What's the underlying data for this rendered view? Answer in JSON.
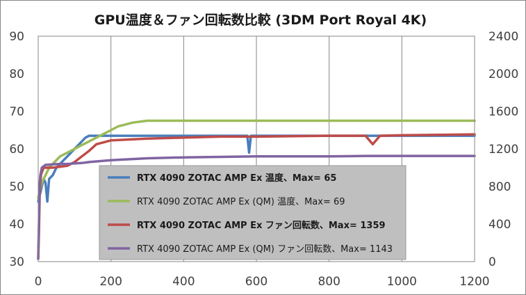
{
  "chart_data": {
    "type": "line",
    "title": "GPU温度＆ファン回転数比較 (3DM Port Royal 4K)",
    "xlim": [
      0,
      1200
    ],
    "x_ticks": [
      0,
      200,
      400,
      600,
      800,
      1000,
      1200
    ],
    "y_left_lim": [
      30,
      90
    ],
    "y_left_ticks": [
      30,
      40,
      50,
      60,
      70,
      80,
      90
    ],
    "y_right_lim": [
      0,
      2400
    ],
    "y_right_ticks": [
      0,
      400,
      800,
      1200,
      1600,
      2000,
      2400
    ],
    "grid": {
      "vertical": true,
      "horizontal": false
    },
    "legend": "center-left",
    "series": [
      {
        "name": "RTX 4090 ZOTAC AMP Ex 温度、Max= 65",
        "axis": "left",
        "color": "#4a7ebb",
        "bold": true,
        "x": [
          0,
          5,
          10,
          15,
          20,
          25,
          30,
          40,
          50,
          60,
          70,
          80,
          90,
          100,
          110,
          120,
          130,
          140,
          160,
          200,
          300,
          400,
          500,
          575,
          580,
          585,
          600,
          700,
          800,
          900,
          1000,
          1100,
          1200
        ],
        "y": [
          46,
          48,
          50,
          52,
          51,
          46,
          52,
          53,
          55,
          56,
          57,
          58,
          59,
          60,
          61,
          62,
          63,
          63.5,
          63.5,
          63.5,
          63.5,
          63.5,
          63.5,
          63.5,
          59,
          63.5,
          63.5,
          63.5,
          63.5,
          63.5,
          63.5,
          63.5,
          63.5
        ]
      },
      {
        "name": "RTX 4090 ZOTAC AMP Ex (QM) 温度、Max= 69",
        "axis": "left",
        "color": "#9bbb59",
        "bold": false,
        "x": [
          0,
          5,
          10,
          20,
          30,
          40,
          60,
          80,
          100,
          120,
          140,
          160,
          180,
          200,
          220,
          240,
          260,
          300,
          400,
          500,
          600,
          700,
          800,
          900,
          1000,
          1100,
          1200
        ],
        "y": [
          47,
          49,
          51,
          53,
          55,
          56,
          58,
          59,
          60,
          61,
          62,
          63,
          64,
          65,
          66,
          66.5,
          67,
          67.5,
          67.5,
          67.5,
          67.5,
          67.5,
          67.5,
          67.5,
          67.5,
          67.5,
          67.5
        ]
      },
      {
        "name": "RTX 4090 ZOTAC AMP Ex ファン回転数、Max= 1359",
        "axis": "right",
        "color": "#be4b48",
        "bold": true,
        "x": [
          0,
          2,
          4,
          6,
          8,
          15,
          40,
          80,
          100,
          120,
          140,
          160,
          200,
          300,
          400,
          500,
          600,
          700,
          800,
          900,
          920,
          940,
          1000,
          1100,
          1200
        ],
        "y": [
          30,
          300,
          700,
          850,
          930,
          1000,
          1000,
          1020,
          1060,
          1120,
          1180,
          1250,
          1290,
          1310,
          1320,
          1330,
          1330,
          1335,
          1340,
          1340,
          1250,
          1340,
          1345,
          1350,
          1355
        ]
      },
      {
        "name": "RTX 4090 ZOTAC AMP Ex (QM) ファン回転数、Max= 1143",
        "axis": "right",
        "color": "#8064a2",
        "bold": false,
        "x": [
          0,
          2,
          4,
          6,
          10,
          20,
          40,
          60,
          80,
          100,
          120,
          140,
          200,
          300,
          400,
          500,
          600,
          700,
          800,
          900,
          1000,
          1100,
          1200
        ],
        "y": [
          30,
          400,
          820,
          920,
          1000,
          1030,
          1035,
          1040,
          1040,
          1045,
          1050,
          1060,
          1080,
          1100,
          1110,
          1115,
          1120,
          1120,
          1120,
          1125,
          1125,
          1125,
          1125
        ]
      }
    ]
  }
}
